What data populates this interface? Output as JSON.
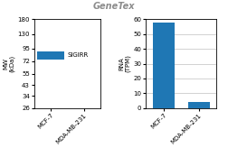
{
  "watermark": "GeneTex",
  "chart_data": [
    {
      "type": "gel",
      "categories": [
        "MCF-7",
        "MDA-MB-231"
      ],
      "values": [
        82,
        null
      ],
      "band_half": [
        7,
        null
      ],
      "annotation": "SIGIRR",
      "ylabel": "MW\n(kDa)",
      "log": "y",
      "ylim": [
        26,
        180
      ],
      "yticks": [
        180,
        130,
        95,
        72,
        55,
        43,
        34,
        26
      ]
    },
    {
      "type": "bar",
      "categories": [
        "MCF-7",
        "MDA-MB-231"
      ],
      "values": [
        57.5,
        4.2
      ],
      "ylabel": "RNA\n(TPM)",
      "ylim": [
        0,
        60
      ],
      "yticks": [
        0,
        10,
        20,
        30,
        40,
        50,
        60
      ],
      "grid": true
    }
  ]
}
